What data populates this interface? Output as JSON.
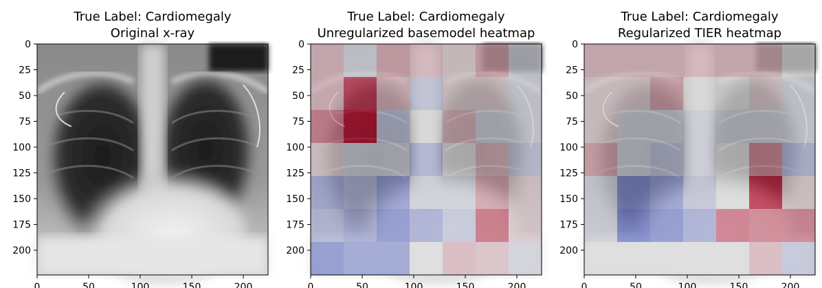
{
  "colors": {
    "cool_end": "#3b4cc0",
    "neutral": "#dddddd",
    "warm_end": "#b40426",
    "axis": "#000000"
  },
  "chart_data": [
    {
      "type": "image",
      "title": "True Label: Cardiomegaly",
      "subtitle": "Original x-ray",
      "xlim": [
        0,
        224
      ],
      "ylim": [
        224,
        0
      ],
      "x_ticks": [
        "0",
        "50",
        "100",
        "150",
        "200"
      ],
      "y_ticks": [
        "0",
        "25",
        "50",
        "75",
        "100",
        "125",
        "150",
        "175",
        "200"
      ],
      "image_content": "chest x-ray (grayscale)"
    },
    {
      "type": "heatmap",
      "title": "True Label: Cardiomegaly",
      "subtitle": "Unregularized basemodel heatmap",
      "xlim": [
        0,
        224
      ],
      "ylim": [
        224,
        0
      ],
      "x_ticks": [
        "0",
        "50",
        "100",
        "150",
        "200"
      ],
      "y_ticks": [
        "0",
        "25",
        "50",
        "75",
        "100",
        "125",
        "150",
        "175",
        "200"
      ],
      "colormap": "coolwarm",
      "grid_size": [
        7,
        7
      ],
      "cell_size": 32,
      "values": [
        [
          0.6,
          0.45,
          0.65,
          0.6,
          0.55,
          0.65,
          0.45
        ],
        [
          0.6,
          0.9,
          0.6,
          0.4,
          0.55,
          0.55,
          0.45
        ],
        [
          0.75,
          0.98,
          0.4,
          0.5,
          0.6,
          0.45,
          0.45
        ],
        [
          0.55,
          0.45,
          0.45,
          0.35,
          0.5,
          0.6,
          0.4
        ],
        [
          0.3,
          0.35,
          0.25,
          0.45,
          0.45,
          0.65,
          0.55
        ],
        [
          0.35,
          0.3,
          0.2,
          0.3,
          0.4,
          0.8,
          0.55
        ],
        [
          0.2,
          0.25,
          0.25,
          0.5,
          0.6,
          0.58,
          0.45
        ]
      ]
    },
    {
      "type": "heatmap",
      "title": "True Label: Cardiomegaly",
      "subtitle": "Regularized TIER heatmap",
      "xlim": [
        0,
        224
      ],
      "ylim": [
        224,
        0
      ],
      "x_ticks": [
        "0",
        "50",
        "100",
        "150",
        "200"
      ],
      "y_ticks": [
        "0",
        "25",
        "50",
        "75",
        "100",
        "125",
        "150",
        "175",
        "200"
      ],
      "colormap": "coolwarm",
      "grid_size": [
        7,
        7
      ],
      "cell_size": 32,
      "values": [
        [
          0.6,
          0.6,
          0.6,
          0.6,
          0.6,
          0.6,
          0.5
        ],
        [
          0.55,
          0.55,
          0.65,
          0.5,
          0.5,
          0.55,
          0.45
        ],
        [
          0.55,
          0.45,
          0.45,
          0.45,
          0.45,
          0.45,
          0.45
        ],
        [
          0.65,
          0.45,
          0.4,
          0.45,
          0.5,
          0.7,
          0.35
        ],
        [
          0.45,
          0.2,
          0.25,
          0.4,
          0.5,
          0.95,
          0.55
        ],
        [
          0.45,
          0.15,
          0.2,
          0.3,
          0.78,
          0.75,
          0.75
        ],
        [
          0.5,
          0.5,
          0.5,
          0.5,
          0.5,
          0.6,
          0.4
        ]
      ]
    }
  ]
}
